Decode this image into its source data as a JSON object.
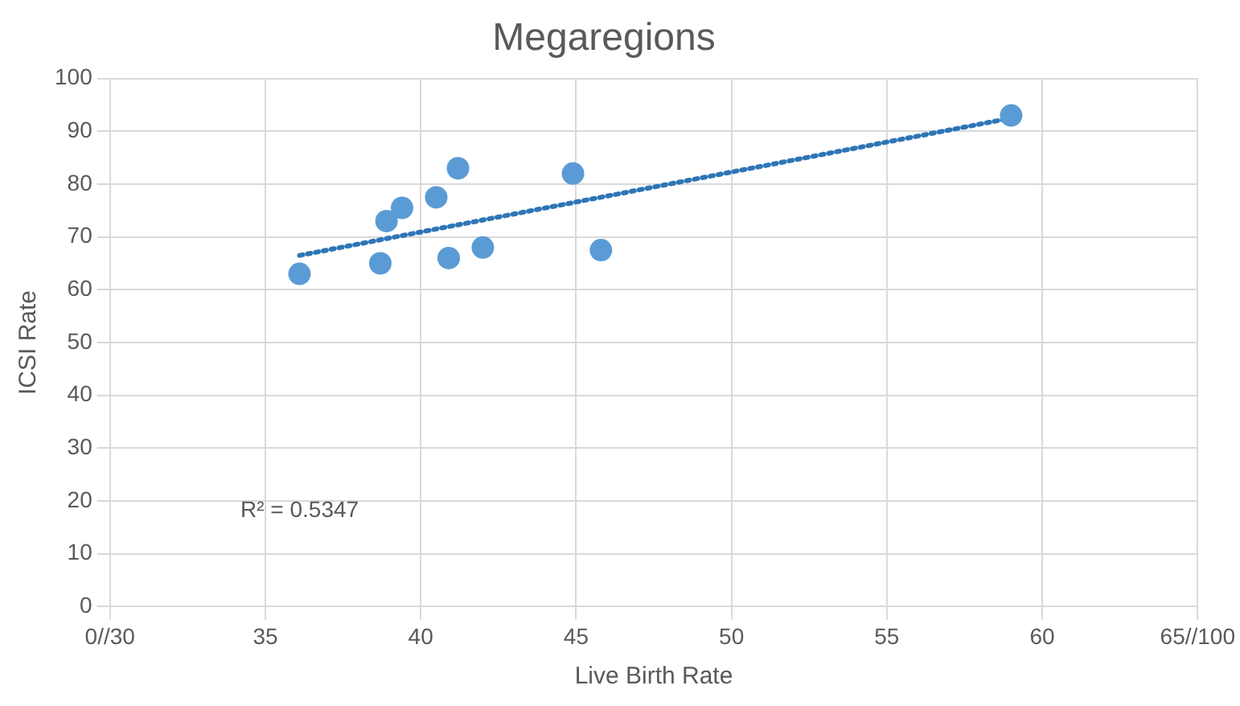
{
  "chart_data": {
    "type": "scatter",
    "title": "Megaregions",
    "xlabel": "Live Birth Rate",
    "ylabel": "ICSI Rate",
    "x": [
      36.1,
      38.7,
      38.9,
      39.4,
      40.5,
      40.9,
      41.2,
      42,
      44.9,
      45.8,
      59
    ],
    "series": [
      {
        "color": "#5b9bd5",
        "values": [
          63,
          65,
          73,
          75.5,
          77.5,
          66,
          83,
          68,
          82,
          67.5,
          93
        ],
        "marker": "circle"
      },
      {
        "type": "line",
        "color": "#2e75b6",
        "x": [
          36.1,
          59
        ],
        "values": [
          66.5,
          92.5
        ],
        "line_style": "dotted",
        "marker": "none"
      }
    ],
    "xlim": [
      30,
      65
    ],
    "xticks": [
      {
        "value": 30,
        "label": "0//30"
      },
      35,
      40,
      45,
      50,
      55,
      60,
      {
        "value": 65,
        "label": "65//100"
      }
    ],
    "ylim": [
      0,
      100
    ],
    "yticks": [
      0,
      10,
      20,
      30,
      40,
      50,
      60,
      70,
      80,
      90,
      100
    ],
    "grid": true,
    "legend": false,
    "annotations": [
      "R² = 0.5347"
    ]
  }
}
